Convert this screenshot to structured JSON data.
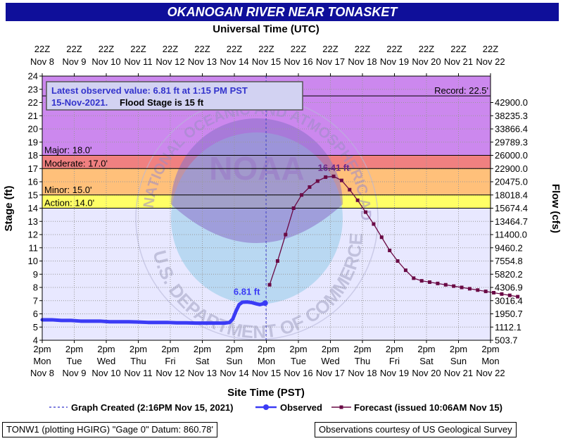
{
  "title": "OKANOGAN RIVER NEAR TONASKET",
  "top_axis_title": "Universal Time (UTC)",
  "bottom_axis_title": "Site Time (PST)",
  "left_axis_title": "Stage (ft)",
  "right_axis_title": "Flow (cfs)",
  "status_box": {
    "line1": "Latest observed value: 6.81 ft at 1:15 PM PST",
    "line2_a": "15-Nov-2021.",
    "line2_b": "Flood Stage is 15 ft"
  },
  "record_label": "Record: 22.5'",
  "legend": {
    "created": "Graph Created (2:16PM Nov 15, 2021)",
    "observed": "Observed",
    "forecast": "Forecast (issued 10:06AM Nov 15)"
  },
  "footer": {
    "left": "TONW1 (plotting HGIRG) \"Gage 0\" Datum: 860.78'",
    "right": "Observations courtesy of US Geological Survey"
  },
  "watermark": {
    "top": "NATIONAL OCEANIC AND ATMOSPHERIC ADMINISTRATION",
    "bottom": "U.S. DEPARTMENT OF COMMERCE",
    "center": "NOAA"
  },
  "colors": {
    "record_band": "#cc88ee",
    "major_band": "#cc88ee",
    "moderate_band": "#f08080",
    "minor_band": "#ffc07a",
    "action_band": "#ffff66",
    "observed": "#3b3bf5",
    "forecast": "#6a0a45",
    "title_bg": "#0f0f9a",
    "background": "#e8e8ff"
  },
  "chart_data": {
    "type": "line",
    "ylim": [
      4,
      24
    ],
    "xlim_days": [
      "Nov 8 2pm",
      "Nov 22 2pm"
    ],
    "left_ticks": [
      4,
      5,
      6,
      7,
      8,
      9,
      10,
      11,
      12,
      13,
      14,
      15,
      16,
      17,
      18,
      19,
      20,
      21,
      22,
      23,
      24
    ],
    "right_ticks": [
      {
        "stage": 4,
        "label": "503.7"
      },
      {
        "stage": 5,
        "label": "1112.1"
      },
      {
        "stage": 6,
        "label": "1950.7"
      },
      {
        "stage": 7,
        "label": "3016.4"
      },
      {
        "stage": 8,
        "label": "4306.9"
      },
      {
        "stage": 9,
        "label": "5820.2"
      },
      {
        "stage": 10,
        "label": "7554.8"
      },
      {
        "stage": 11,
        "label": "9460.2"
      },
      {
        "stage": 12,
        "label": "11400.0"
      },
      {
        "stage": 13,
        "label": "13464.7"
      },
      {
        "stage": 14,
        "label": "15674.4"
      },
      {
        "stage": 15,
        "label": "18018.4"
      },
      {
        "stage": 16,
        "label": "20475.0"
      },
      {
        "stage": 17,
        "label": "22900.0"
      },
      {
        "stage": 18,
        "label": "26000.0"
      },
      {
        "stage": 19,
        "label": "29789.3"
      },
      {
        "stage": 20,
        "label": "33866.4"
      },
      {
        "stage": 21,
        "label": "38235.3"
      },
      {
        "stage": 22,
        "label": "42900.0"
      }
    ],
    "bottom_ticks": [
      {
        "l1": "2pm",
        "l2": "Mon",
        "l3": "Nov 8"
      },
      {
        "l1": "2pm",
        "l2": "Tue",
        "l3": "Nov 9"
      },
      {
        "l1": "2pm",
        "l2": "Wed",
        "l3": "Nov 10"
      },
      {
        "l1": "2pm",
        "l2": "Thu",
        "l3": "Nov 11"
      },
      {
        "l1": "2pm",
        "l2": "Fri",
        "l3": "Nov 12"
      },
      {
        "l1": "2pm",
        "l2": "Sat",
        "l3": "Nov 13"
      },
      {
        "l1": "2pm",
        "l2": "Sun",
        "l3": "Nov 14"
      },
      {
        "l1": "2pm",
        "l2": "Mon",
        "l3": "Nov 15"
      },
      {
        "l1": "2pm",
        "l2": "Tue",
        "l3": "Nov 16"
      },
      {
        "l1": "2pm",
        "l2": "Wed",
        "l3": "Nov 17"
      },
      {
        "l1": "2pm",
        "l2": "Thu",
        "l3": "Nov 18"
      },
      {
        "l1": "2pm",
        "l2": "Fri",
        "l3": "Nov 19"
      },
      {
        "l1": "2pm",
        "l2": "Sat",
        "l3": "Nov 20"
      },
      {
        "l1": "2pm",
        "l2": "Sun",
        "l3": "Nov 21"
      },
      {
        "l1": "2pm",
        "l2": "Mon",
        "l3": "Nov 22"
      }
    ],
    "top_ticks": [
      {
        "l1": "22Z",
        "l2": "Nov 8"
      },
      {
        "l1": "22Z",
        "l2": "Nov 9"
      },
      {
        "l1": "22Z",
        "l2": "Nov 10"
      },
      {
        "l1": "22Z",
        "l2": "Nov 11"
      },
      {
        "l1": "22Z",
        "l2": "Nov 12"
      },
      {
        "l1": "22Z",
        "l2": "Nov 13"
      },
      {
        "l1": "22Z",
        "l2": "Nov 14"
      },
      {
        "l1": "22Z",
        "l2": "Nov 15"
      },
      {
        "l1": "22Z",
        "l2": "Nov 16"
      },
      {
        "l1": "22Z",
        "l2": "Nov 17"
      },
      {
        "l1": "22Z",
        "l2": "Nov 18"
      },
      {
        "l1": "22Z",
        "l2": "Nov 19"
      },
      {
        "l1": "22Z",
        "l2": "Nov 20"
      },
      {
        "l1": "22Z",
        "l2": "Nov 21"
      },
      {
        "l1": "22Z",
        "l2": "Nov 22"
      }
    ],
    "flood_categories": [
      {
        "name": "Action",
        "label": "Action: 14.0'",
        "from": 14,
        "to": 15
      },
      {
        "name": "Minor",
        "label": "Minor: 15.0'",
        "from": 15,
        "to": 17
      },
      {
        "name": "Moderate",
        "label": "Moderate: 17.0'",
        "from": 17,
        "to": 18
      },
      {
        "name": "Major",
        "label": "Major: 18.0'",
        "from": 18,
        "to": 24
      }
    ],
    "record_stage": 22.5,
    "graph_created_day": 6.99,
    "observed": {
      "name": "Observed",
      "label": "6.81 ft",
      "points": [
        [
          0,
          5.55
        ],
        [
          0.3,
          5.55
        ],
        [
          0.6,
          5.5
        ],
        [
          0.9,
          5.5
        ],
        [
          1.2,
          5.45
        ],
        [
          1.5,
          5.45
        ],
        [
          1.8,
          5.45
        ],
        [
          2.1,
          5.4
        ],
        [
          2.4,
          5.4
        ],
        [
          2.7,
          5.4
        ],
        [
          3.0,
          5.38
        ],
        [
          3.3,
          5.35
        ],
        [
          3.6,
          5.35
        ],
        [
          3.9,
          5.35
        ],
        [
          4.2,
          5.32
        ],
        [
          4.5,
          5.32
        ],
        [
          4.8,
          5.3
        ],
        [
          5.1,
          5.3
        ],
        [
          5.4,
          5.3
        ],
        [
          5.7,
          5.3
        ],
        [
          5.85,
          5.35
        ],
        [
          5.95,
          5.6
        ],
        [
          6.05,
          6.2
        ],
        [
          6.15,
          6.7
        ],
        [
          6.25,
          6.88
        ],
        [
          6.4,
          6.9
        ],
        [
          6.55,
          6.85
        ],
        [
          6.7,
          6.75
        ],
        [
          6.8,
          6.7
        ],
        [
          6.88,
          6.75
        ],
        [
          6.96,
          6.81
        ]
      ]
    },
    "forecast": {
      "name": "Forecast",
      "label": "16.41 ft",
      "points": [
        [
          7.1,
          8.2
        ],
        [
          7.35,
          10.0
        ],
        [
          7.6,
          12.0
        ],
        [
          7.85,
          14.0
        ],
        [
          8.1,
          15.0
        ],
        [
          8.35,
          15.6
        ],
        [
          8.6,
          16.05
        ],
        [
          8.85,
          16.35
        ],
        [
          9.1,
          16.41
        ],
        [
          9.35,
          16.1
        ],
        [
          9.6,
          15.4
        ],
        [
          9.85,
          14.6
        ],
        [
          10.1,
          13.7
        ],
        [
          10.35,
          12.8
        ],
        [
          10.6,
          11.8
        ],
        [
          10.85,
          10.8
        ],
        [
          11.1,
          10.0
        ],
        [
          11.35,
          9.3
        ],
        [
          11.6,
          8.7
        ],
        [
          11.85,
          8.5
        ],
        [
          12.1,
          8.4
        ],
        [
          12.35,
          8.3
        ],
        [
          12.6,
          8.2
        ],
        [
          12.85,
          8.1
        ],
        [
          13.1,
          8.0
        ],
        [
          13.35,
          7.9
        ],
        [
          13.6,
          7.8
        ],
        [
          13.85,
          7.7
        ],
        [
          14.1,
          7.6
        ],
        [
          14.35,
          7.5
        ],
        [
          14.6,
          7.4
        ],
        [
          14.85,
          7.3
        ]
      ]
    }
  }
}
